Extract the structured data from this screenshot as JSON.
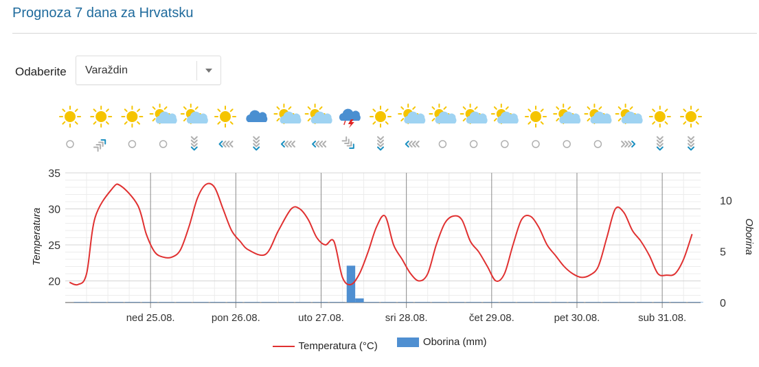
{
  "header": {
    "title": "Prognoza 7 dana za Hrvatsku"
  },
  "location_select": {
    "label": "Odaberite",
    "value": "Varaždin"
  },
  "weather_icons": [
    "sun",
    "sun",
    "sun",
    "partly-cloudy",
    "partly-cloudy",
    "sun",
    "cloud",
    "partly-cloudy",
    "partly-cloudy",
    "thunderstorm",
    "sun",
    "partly-cloudy",
    "partly-cloudy",
    "partly-cloudy",
    "partly-cloudy",
    "sun",
    "partly-cloudy",
    "partly-cloudy",
    "partly-cloudy",
    "sun",
    "sun"
  ],
  "wind_icons": [
    "calm",
    "wind-ne",
    "calm",
    "calm",
    "wind-s",
    "wind-w",
    "wind-s",
    "wind-w",
    "wind-w",
    "wind-se",
    "wind-s",
    "wind-w",
    "calm",
    "calm",
    "calm",
    "calm",
    "calm",
    "calm",
    "wind-e",
    "wind-s",
    "wind-s"
  ],
  "colors": {
    "title": "#1e6a9c",
    "temperature": "#e03030",
    "precipitation": "#4f8fd1",
    "sun": "#f5c400",
    "cloud": "#9fd3f2",
    "rain_cloud": "#4a8fd1",
    "wind_arrow": "#1a8fc0",
    "wind_grey": "#b0b0b0"
  },
  "chart_data": {
    "type": "line",
    "ylabel": "Temperatura",
    "y2label": "Oborina",
    "ylim": [
      17,
      35
    ],
    "y_ticks": [
      20,
      25,
      30,
      35
    ],
    "y2lim": [
      0,
      12.67
    ],
    "y2_ticks": [
      0,
      5,
      10
    ],
    "xlim": [
      0,
      7.45
    ],
    "day_labels": [
      "ned 25.08.",
      "pon 26.08.",
      "uto 27.08.",
      "sri 28.08.",
      "čet 29.08.",
      "pet 30.08.",
      "sub 31.08."
    ],
    "legend_position": "bottom",
    "grid": true,
    "series": [
      {
        "name": "Temperatura (°C)",
        "type": "line",
        "x": [
          0.05,
          0.15,
          0.25,
          0.35,
          0.55,
          0.65,
          0.85,
          0.95,
          1.05,
          1.15,
          1.25,
          1.35,
          1.45,
          1.55,
          1.65,
          1.75,
          1.85,
          1.95,
          2.05,
          2.15,
          2.35,
          2.5,
          2.65,
          2.75,
          2.85,
          2.95,
          3.05,
          3.15,
          3.25,
          3.35,
          3.45,
          3.55,
          3.65,
          3.75,
          3.85,
          3.95,
          4.05,
          4.15,
          4.25,
          4.35,
          4.45,
          4.55,
          4.65,
          4.75,
          4.85,
          4.95,
          5.05,
          5.15,
          5.25,
          5.35,
          5.45,
          5.55,
          5.65,
          5.75,
          5.85,
          5.95,
          6.05,
          6.15,
          6.25,
          6.35,
          6.45,
          6.55,
          6.65,
          6.75,
          6.85,
          6.95,
          7.05,
          7.15,
          7.25,
          7.35
        ],
        "values": [
          19.8,
          19.5,
          21.0,
          28.8,
          32.8,
          33.2,
          30.5,
          26.5,
          24.0,
          23.3,
          23.3,
          24.3,
          27.5,
          31.5,
          33.4,
          33.0,
          30.0,
          27.0,
          25.5,
          24.3,
          23.7,
          27.0,
          30.0,
          30.0,
          28.5,
          26.0,
          25.0,
          25.5,
          20.5,
          19.5,
          21.0,
          24.0,
          27.5,
          29.0,
          25.0,
          23.0,
          21.0,
          20.0,
          21.0,
          25.0,
          28.0,
          29.0,
          28.5,
          25.5,
          24.0,
          22.0,
          20.0,
          21.0,
          25.0,
          28.5,
          29.0,
          27.5,
          25.0,
          23.5,
          22.0,
          21.0,
          20.5,
          20.8,
          22.0,
          26.0,
          30.0,
          29.5,
          27.0,
          25.5,
          23.5,
          21.0,
          20.8,
          21.0,
          23.0,
          26.5
        ]
      },
      {
        "name": "Oborina (mm)",
        "type": "bar",
        "axis": "y2",
        "x": [
          3.3,
          3.4
        ],
        "width": 0.1,
        "values": [
          3.6,
          0.4
        ]
      }
    ]
  }
}
